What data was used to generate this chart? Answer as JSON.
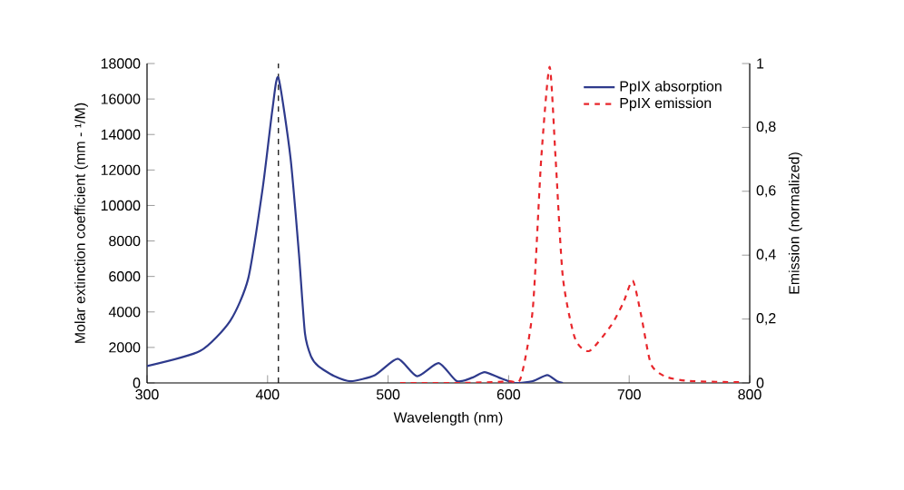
{
  "chart_data": {
    "type": "line",
    "xlabel": "Wavelength (nm)",
    "ylabel": "Molar extinction coefficient (mm - ¹/M)",
    "y2label": "Emission (normalized)",
    "xlim": [
      300,
      800
    ],
    "xticks": [
      300,
      400,
      500,
      600,
      700,
      800
    ],
    "ylim": [
      0,
      18000
    ],
    "yticks": [
      0,
      2000,
      4000,
      6000,
      8000,
      10000,
      12000,
      14000,
      16000,
      18000
    ],
    "y2lim": [
      0,
      1
    ],
    "y2ticks": [
      0,
      {
        "value": 0.2,
        "label": "0,2"
      },
      {
        "value": 0.4,
        "label": "0,4"
      },
      {
        "value": 0.6,
        "label": "0,6"
      },
      {
        "value": 0.8,
        "label": "0,8"
      },
      1
    ],
    "legend": "top right",
    "grid": false,
    "ref_lines": [
      {
        "axis": "x",
        "value": 409,
        "label": null,
        "color": "#000000",
        "line_style": "dashed"
      }
    ],
    "series": [
      {
        "name": "PpIX absorption",
        "color": "#2e3a8c",
        "line_style": "solid",
        "axis": "y",
        "x": [
          300,
          344,
          369,
          384,
          396,
          404,
          409,
          419,
          426,
          431,
          436,
          442,
          455,
          469,
          489,
          508,
          524,
          542,
          557,
          570,
          580,
          592,
          605,
          620,
          632,
          640,
          645
        ],
        "values": [
          950,
          1800,
          3500,
          5900,
          11000,
          15400,
          17200,
          12700,
          7300,
          2800,
          1500,
          950,
          400,
          100,
          440,
          1360,
          380,
          1120,
          100,
          300,
          610,
          300,
          0,
          100,
          440,
          100,
          0
        ]
      },
      {
        "name": "PpIX emission",
        "color": "#e8262b",
        "line_style": "dashed",
        "axis": "y2",
        "x": [
          510,
          560,
          600,
          610,
          620,
          627,
          634,
          639,
          645,
          655,
          667,
          685,
          695,
          703,
          710,
          718,
          730,
          750,
          795
        ],
        "values": [
          0,
          0,
          0.005,
          0.015,
          0.23,
          0.7,
          0.99,
          0.7,
          0.33,
          0.14,
          0.1,
          0.18,
          0.25,
          0.32,
          0.21,
          0.06,
          0.02,
          0.006,
          0.002
        ]
      }
    ]
  }
}
